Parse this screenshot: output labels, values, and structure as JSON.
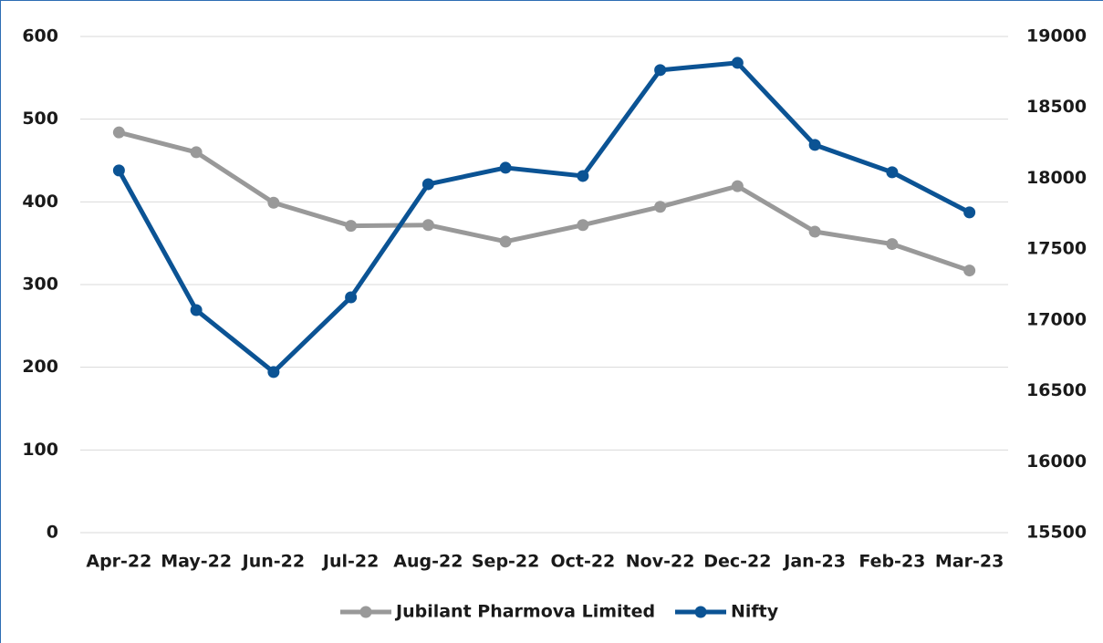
{
  "chart_data": {
    "type": "line",
    "categories": [
      "Apr-22",
      "May-22",
      "Jun-22",
      "Jul-22",
      "Aug-22",
      "Sep-22",
      "Oct-22",
      "Nov-22",
      "Dec-22",
      "Jan-23",
      "Feb-23",
      "Mar-23"
    ],
    "series": [
      {
        "name": "Jubilant Pharmova Limited",
        "color": "#999999",
        "values": [
          484,
          460,
          399,
          371,
          372,
          352,
          372,
          394,
          419,
          364,
          349,
          317
        ]
      },
      {
        "name": "Nifty",
        "color": "#0b5394",
        "axis": "y2",
        "values": [
          18055,
          17070,
          16633,
          17160,
          17958,
          18074,
          18016,
          18763,
          18814,
          18235,
          18042,
          17759
        ]
      }
    ],
    "ylim": [
      0,
      600
    ],
    "yticks": [
      0,
      100,
      200,
      300,
      400,
      500,
      600
    ],
    "y2lim": [
      15500,
      19000
    ],
    "y2ticks": [
      15500,
      16000,
      16500,
      17000,
      17500,
      18000,
      18500,
      19000
    ],
    "grid": true,
    "legend": "bottom"
  }
}
